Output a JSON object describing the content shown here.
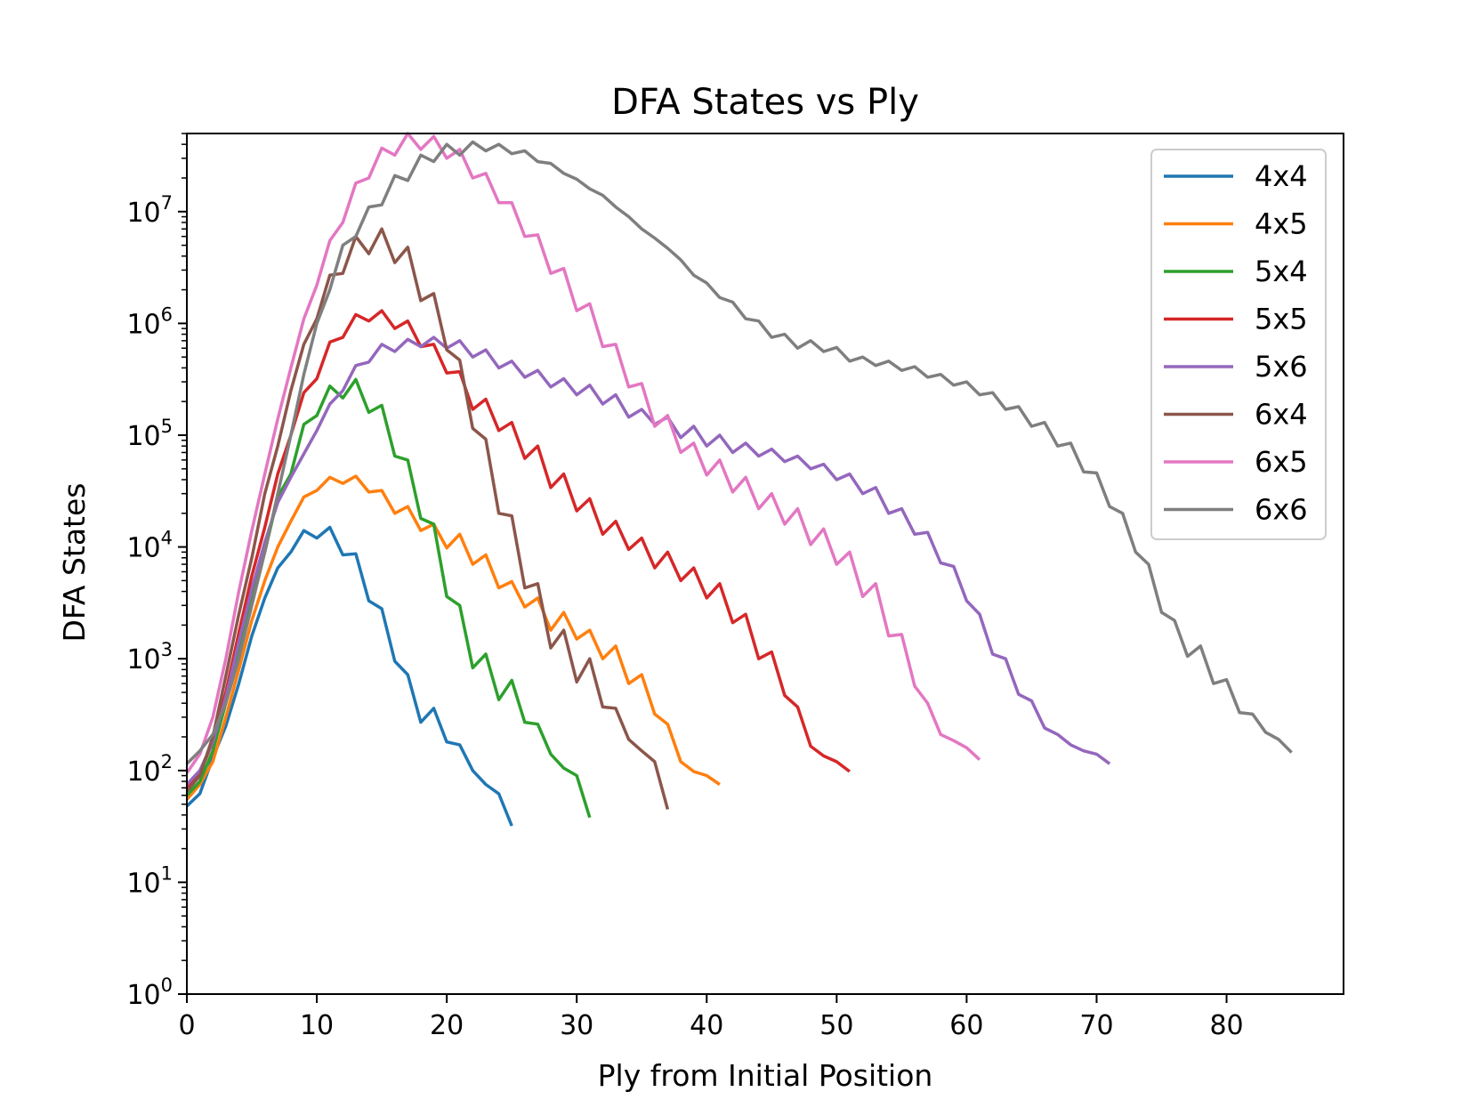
{
  "chart_data": {
    "type": "line",
    "title": "DFA States vs Ply",
    "xlabel": "Ply from Initial Position",
    "ylabel": "DFA States",
    "yscale": "log",
    "xlim": [
      0,
      89
    ],
    "ylim": [
      1,
      50000000
    ],
    "xticks": [
      0,
      10,
      20,
      30,
      40,
      50,
      60,
      70,
      80
    ],
    "yticks": [
      {
        "value": 1,
        "base": "10",
        "exp": "0"
      },
      {
        "value": 10,
        "base": "10",
        "exp": "1"
      },
      {
        "value": 100,
        "base": "10",
        "exp": "2"
      },
      {
        "value": 1000,
        "base": "10",
        "exp": "3"
      },
      {
        "value": 10000,
        "base": "10",
        "exp": "4"
      },
      {
        "value": 100000,
        "base": "10",
        "exp": "5"
      },
      {
        "value": 1000000,
        "base": "10",
        "exp": "6"
      },
      {
        "value": 10000000,
        "base": "10",
        "exp": "7"
      }
    ],
    "legend_position": "top-right",
    "series": [
      {
        "name": "4x4",
        "color": "#1f77b4",
        "values": [
          48,
          62,
          130,
          250,
          600,
          1600,
          3500,
          6500,
          9000,
          14000,
          12000,
          15000,
          8500,
          8700,
          3300,
          2800,
          950,
          720,
          270,
          360,
          180,
          170,
          100,
          75,
          62,
          32
        ]
      },
      {
        "name": "4x5",
        "color": "#ff7f0e",
        "values": [
          55,
          75,
          120,
          300,
          800,
          2200,
          5000,
          10000,
          17000,
          28000,
          32000,
          42000,
          37000,
          43000,
          31000,
          32000,
          20000,
          23000,
          14000,
          16000,
          9800,
          13000,
          7000,
          8500,
          4300,
          4900,
          2900,
          3500,
          1800,
          2600,
          1500,
          1800,
          1000,
          1300,
          600,
          720,
          320,
          260,
          120,
          98,
          90,
          75
        ]
      },
      {
        "name": "5x4",
        "color": "#2ca02c",
        "values": [
          60,
          80,
          150,
          400,
          1200,
          3500,
          9000,
          28000,
          45000,
          125000,
          150000,
          275000,
          215000,
          315000,
          160000,
          185000,
          65000,
          60000,
          18000,
          16000,
          3600,
          3000,
          830,
          1100,
          430,
          640,
          270,
          260,
          140,
          105,
          90,
          38
        ]
      },
      {
        "name": "5x5",
        "color": "#d62728",
        "values": [
          70,
          95,
          180,
          500,
          1700,
          5500,
          15000,
          45000,
          100000,
          240000,
          320000,
          680000,
          750000,
          1200000,
          1050000,
          1300000,
          900000,
          1050000,
          620000,
          650000,
          360000,
          370000,
          170000,
          210000,
          110000,
          130000,
          62000,
          80000,
          34000,
          45000,
          21000,
          27000,
          13000,
          17000,
          9500,
          12000,
          6500,
          9000,
          5000,
          6500,
          3500,
          4700,
          2100,
          2500,
          1000,
          1150,
          470,
          370,
          165,
          135,
          120,
          98
        ]
      },
      {
        "name": "5x6",
        "color": "#9467bd",
        "values": [
          75,
          100,
          180,
          450,
          1400,
          4200,
          11000,
          25000,
          42000,
          68000,
          110000,
          190000,
          250000,
          420000,
          450000,
          650000,
          560000,
          720000,
          620000,
          750000,
          600000,
          700000,
          500000,
          580000,
          400000,
          460000,
          330000,
          380000,
          270000,
          320000,
          230000,
          280000,
          190000,
          230000,
          145000,
          170000,
          125000,
          145000,
          95000,
          120000,
          80000,
          100000,
          70000,
          85000,
          65000,
          75000,
          58000,
          65000,
          50000,
          55000,
          40000,
          45000,
          30000,
          34000,
          20000,
          22000,
          13000,
          13500,
          7200,
          6700,
          3300,
          2500,
          1100,
          1000,
          480,
          420,
          240,
          210,
          170,
          150,
          140,
          115
        ]
      },
      {
        "name": "6x4",
        "color": "#8c564b",
        "values": [
          65,
          90,
          200,
          700,
          2500,
          8000,
          30000,
          80000,
          250000,
          650000,
          1100000,
          2700000,
          2800000,
          6000000,
          4200000,
          7000000,
          3500000,
          4800000,
          1600000,
          1850000,
          580000,
          470000,
          115000,
          92000,
          20000,
          19000,
          4300,
          4700,
          1250,
          1800,
          620,
          1000,
          370,
          360,
          190,
          150,
          120,
          45
        ]
      },
      {
        "name": "6x5",
        "color": "#e377c2",
        "values": [
          95,
          140,
          300,
          1000,
          4000,
          14000,
          45000,
          140000,
          400000,
          1100000,
          2200000,
          5500000,
          8000000,
          18000000,
          20000000,
          37000000,
          32000000,
          50000000,
          36000000,
          47000000,
          30000000,
          36000000,
          20000000,
          22000000,
          12000000,
          12000000,
          6000000,
          6200000,
          2800000,
          3100000,
          1300000,
          1500000,
          620000,
          650000,
          270000,
          290000,
          120000,
          150000,
          70000,
          85000,
          44000,
          60000,
          31000,
          42000,
          22000,
          30000,
          16000,
          22000,
          10500,
          14500,
          7000,
          9000,
          3600,
          4700,
          1600,
          1650,
          570,
          400,
          210,
          185,
          160,
          125
        ]
      },
      {
        "name": "6x6",
        "color": "#7f7f7f",
        "values": [
          115,
          150,
          210,
          400,
          1000,
          3000,
          9000,
          30000,
          100000,
          350000,
          1000000,
          2000000,
          5000000,
          6000000,
          11000000,
          11500000,
          21000000,
          19000000,
          32000000,
          28000000,
          40000000,
          32000000,
          42000000,
          35000000,
          40000000,
          33000000,
          35000000,
          28000000,
          27000000,
          22000000,
          19500000,
          16000000,
          14000000,
          11000000,
          9000000,
          7000000,
          5800000,
          4700000,
          3700000,
          2700000,
          2300000,
          1700000,
          1550000,
          1100000,
          1050000,
          750000,
          800000,
          600000,
          700000,
          560000,
          610000,
          460000,
          500000,
          420000,
          460000,
          380000,
          410000,
          330000,
          350000,
          280000,
          300000,
          230000,
          240000,
          170000,
          180000,
          120000,
          130000,
          80000,
          85000,
          47000,
          46000,
          23000,
          20000,
          9000,
          7000,
          2600,
          2200,
          1050,
          1300,
          600,
          650,
          330,
          320,
          220,
          190,
          145
        ]
      }
    ]
  }
}
